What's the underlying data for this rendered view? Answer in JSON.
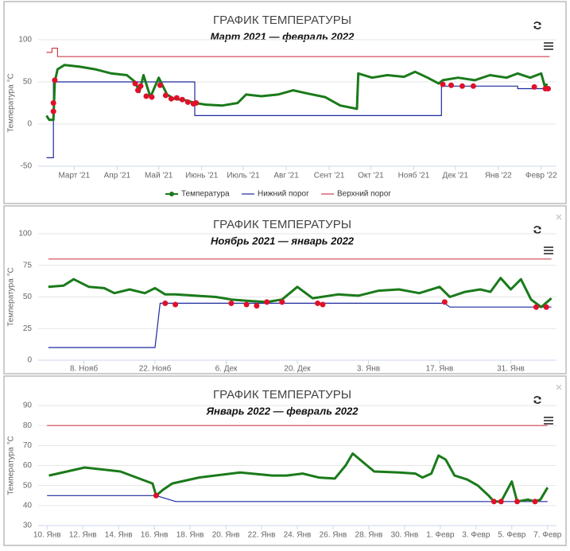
{
  "chart_data": [
    {
      "type": "line",
      "title": "ГРАФИК ТЕМПЕРАТУРЫ",
      "subtitle": "Март 2021 — февраль 2022",
      "ylabel": "Температура °C",
      "xlim": [
        -26,
        348
      ],
      "xticks": [
        {
          "value": 0,
          "label": "Март '21"
        },
        {
          "value": 31,
          "label": "Апр '21"
        },
        {
          "value": 61,
          "label": "Май '21"
        },
        {
          "value": 92,
          "label": "Июнь '21"
        },
        {
          "value": 122,
          "label": "Июль '21"
        },
        {
          "value": 153,
          "label": "Авг '21"
        },
        {
          "value": 184,
          "label": "Сент '21"
        },
        {
          "value": 214,
          "label": "Окт '21"
        },
        {
          "value": 245,
          "label": "Нояб '21"
        },
        {
          "value": 275,
          "label": "Дек '21"
        },
        {
          "value": 306,
          "label": "Янв '22"
        },
        {
          "value": 337,
          "label": "Февр '22"
        }
      ],
      "ylim": [
        -50,
        100
      ],
      "yticks": [
        -50,
        0,
        50,
        100
      ],
      "grid": true,
      "legend": "bottom",
      "series": [
        {
          "name": "Температура",
          "color": "#1a7a1a",
          "x": [
            -20,
            -18,
            -15,
            -14,
            -12,
            -7,
            4,
            15,
            27,
            38,
            44,
            47,
            50,
            55,
            61,
            67,
            72,
            81,
            87,
            95,
            107,
            118,
            124,
            135,
            147,
            158,
            169,
            181,
            192,
            204,
            205,
            215,
            226,
            238,
            246,
            255,
            263,
            266,
            277,
            289,
            300,
            312,
            320,
            329,
            337,
            340,
            341
          ],
          "values": [
            10,
            5,
            5,
            50,
            65,
            70,
            68,
            65,
            60,
            58,
            50,
            38,
            58,
            32,
            55,
            35,
            30,
            28,
            25,
            23,
            22,
            25,
            35,
            33,
            35,
            40,
            36,
            32,
            22,
            18,
            60,
            55,
            58,
            56,
            62,
            55,
            48,
            52,
            55,
            52,
            58,
            55,
            60,
            55,
            60,
            42,
            48
          ]
        },
        {
          "name": "Нижний порог",
          "color": "#1c2a9e",
          "x": [
            -20,
            -15,
            -15,
            87,
            87,
            265,
            265,
            320,
            320,
            343
          ],
          "values": [
            -40,
            -40,
            50,
            50,
            10,
            10,
            45,
            45,
            42,
            42
          ]
        },
        {
          "name": "Верхний порог",
          "color": "#d04050",
          "x": [
            -20,
            -16,
            -16,
            -12,
            -12,
            343
          ],
          "values": [
            85,
            85,
            90,
            90,
            80,
            80
          ]
        }
      ],
      "alerts": {
        "color": "#e0102a",
        "x": [
          -15,
          -15,
          -14,
          44,
          46,
          48,
          52,
          56,
          62,
          66,
          70,
          74,
          78,
          82,
          86,
          88,
          266,
          272,
          280,
          288,
          332,
          340,
          342
        ],
        "values": [
          25,
          15,
          52,
          48,
          40,
          45,
          33,
          32,
          46,
          34,
          30,
          31,
          29,
          26,
          24,
          25,
          47,
          46,
          45,
          45,
          44,
          42,
          42
        ]
      }
    },
    {
      "type": "line",
      "title": "ГРАФИК ТЕМПЕРАТУРЫ",
      "subtitle": "Ноябрь 2021 — январь 2022",
      "ylabel": "Температура °C",
      "xlim": [
        -1,
        101
      ],
      "xticks": [
        {
          "value": 8,
          "label": "8. Нояб"
        },
        {
          "value": 22,
          "label": "22. Нояб"
        },
        {
          "value": 36,
          "label": "6. Дек"
        },
        {
          "value": 50,
          "label": "20. Дек"
        },
        {
          "value": 64,
          "label": "3. Янв"
        },
        {
          "value": 78,
          "label": "17. Янв"
        },
        {
          "value": 92,
          "label": "31. Янв"
        }
      ],
      "ylim": [
        0,
        100
      ],
      "yticks": [
        0,
        25,
        50,
        75,
        100
      ],
      "grid": true,
      "series": [
        {
          "color": "#1a7a1a",
          "x": [
            1,
            4,
            6,
            9,
            12,
            14,
            17,
            20,
            22,
            24,
            26,
            30,
            34,
            37,
            40,
            44,
            47,
            50,
            53,
            58,
            62,
            66,
            70,
            74,
            78,
            80,
            83,
            86,
            88,
            90,
            92,
            94,
            96,
            98,
            100
          ],
          "values": [
            58,
            59,
            64,
            58,
            57,
            53,
            56,
            53,
            57,
            52,
            52,
            51,
            50,
            48,
            47,
            46,
            48,
            58,
            49,
            52,
            51,
            55,
            56,
            53,
            58,
            50,
            54,
            56,
            54,
            65,
            56,
            64,
            48,
            42,
            49
          ]
        },
        {
          "color": "#1c2a9e",
          "x": [
            1,
            22,
            23,
            79,
            80,
            100
          ],
          "values": [
            10,
            10,
            45,
            45,
            42,
            42
          ]
        },
        {
          "color": "#d04050",
          "x": [
            1,
            100
          ],
          "values": [
            80,
            80
          ]
        }
      ],
      "alerts": {
        "color": "#e0102a",
        "x": [
          24,
          26,
          37,
          40,
          42,
          44,
          47,
          54,
          55,
          79,
          97,
          99
        ],
        "values": [
          45,
          44,
          45,
          44,
          43,
          46,
          46,
          45,
          44,
          46,
          42,
          42
        ]
      }
    },
    {
      "type": "line",
      "title": "ГРАФИК ТЕМПЕРАТУРЫ",
      "subtitle": "Январь 2022 — февраль 2022",
      "ylabel": "Температура °C",
      "xlim": [
        9.5,
        38.5
      ],
      "xticks": [
        {
          "value": 10,
          "label": "10. Янв"
        },
        {
          "value": 12,
          "label": "12. Янв"
        },
        {
          "value": 14,
          "label": "14. Янв"
        },
        {
          "value": 16,
          "label": "16. Янв"
        },
        {
          "value": 18,
          "label": "18. Янв"
        },
        {
          "value": 20,
          "label": "20. Янв"
        },
        {
          "value": 22,
          "label": "22. Янв"
        },
        {
          "value": 24,
          "label": "24. Янв"
        },
        {
          "value": 26,
          "label": "26. Янв"
        },
        {
          "value": 28,
          "label": "28. Янв"
        },
        {
          "value": 30,
          "label": "30. Янв"
        },
        {
          "value": 32,
          "label": "1. Февр"
        },
        {
          "value": 34,
          "label": "3. Февр"
        },
        {
          "value": 36,
          "label": "5. Февр"
        },
        {
          "value": 38,
          "label": "7. Февр"
        }
      ],
      "ylim": [
        30,
        90
      ],
      "yticks": [
        30,
        40,
        50,
        60,
        70,
        80,
        90
      ],
      "grid": true,
      "series": [
        {
          "color": "#1a7a1a",
          "x": [
            10.1,
            12.1,
            14.1,
            15.9,
            16.1,
            16.5,
            17,
            18.5,
            20.8,
            22.6,
            23.4,
            24.3,
            25.2,
            26.1,
            26.7,
            27.1,
            27.5,
            28.3,
            29.7,
            30.6,
            31,
            31.5,
            31.9,
            32.3,
            32.8,
            33.5,
            34.1,
            34.7,
            35,
            35.4,
            36,
            36.3,
            36.9,
            37.3,
            37.6,
            38
          ],
          "values": [
            55,
            59,
            57,
            51,
            45,
            48,
            51,
            54,
            56.5,
            55,
            55,
            56,
            54,
            53.5,
            60,
            66,
            63,
            57,
            56.5,
            56,
            54,
            56,
            65,
            63,
            55,
            53,
            50,
            45,
            42,
            42,
            52,
            42,
            43,
            42,
            43,
            49
          ]
        },
        {
          "color": "#1c2a9e",
          "x": [
            10,
            16.1,
            17.2,
            38
          ],
          "values": [
            45,
            45,
            42,
            42
          ]
        },
        {
          "color": "#d04050",
          "x": [
            10,
            38
          ],
          "values": [
            80,
            80
          ]
        }
      ],
      "alerts": {
        "color": "#e0102a",
        "x": [
          16.1,
          35,
          35.4,
          36.3,
          37.3
        ],
        "values": [
          45,
          42,
          42,
          42,
          42
        ]
      }
    }
  ]
}
